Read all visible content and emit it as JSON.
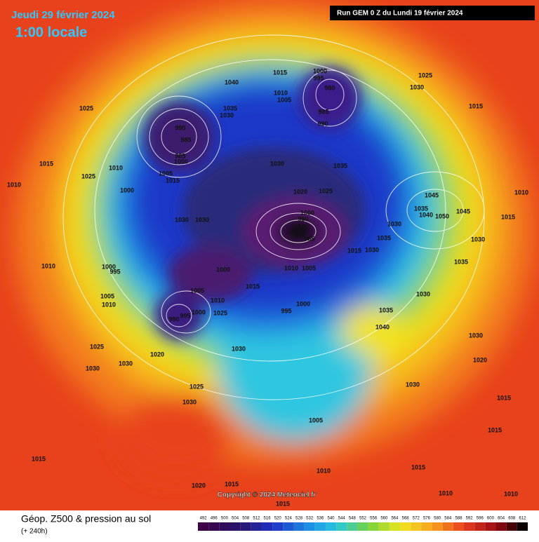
{
  "header": {
    "date": "Jeudi 29 février 2024",
    "time": "1:00 locale",
    "run": "Run GEM 0 Z du Lundi 19 février 2024"
  },
  "map": {
    "copyright": "Copyright © 2024 Meteociel.fr",
    "pressure_labels": [
      "1040",
      "1015",
      "1000",
      "995",
      "1025",
      "1030",
      "1015",
      "1010",
      "1005",
      "1035",
      "1030",
      "980",
      "985",
      "990",
      "1025",
      "990",
      "985",
      "985",
      "1000",
      "1005",
      "1015",
      "1010",
      "1015",
      "1025",
      "1010",
      "1000",
      "1030",
      "1035",
      "1020",
      "1025",
      "1045",
      "1010",
      "1035",
      "1040",
      "1050",
      "1045",
      "1015",
      "1030",
      "1030",
      "1000",
      "990",
      "980",
      "970",
      "985",
      "1030",
      "1035",
      "1030",
      "1015",
      "1030",
      "1035",
      "1010",
      "1000",
      "995",
      "1000",
      "1010",
      "1005",
      "1015",
      "1005",
      "1030",
      "1005",
      "1010",
      "1010",
      "1000",
      "1025",
      "995",
      "990",
      "995",
      "1000",
      "1035",
      "1040",
      "1030",
      "1025",
      "1030",
      "1020",
      "1020",
      "1030",
      "1030",
      "1030",
      "1025",
      "1030",
      "1015",
      "1005",
      "1015",
      "1015",
      "1010",
      "1015",
      "1020",
      "1015",
      "1010",
      "1010",
      "1015"
    ]
  },
  "footer": {
    "title": "Géop. Z500 & pression au sol",
    "subtitle": "(+ 240h)",
    "scale": [
      492,
      496,
      500,
      504,
      508,
      512,
      516,
      520,
      524,
      528,
      532,
      536,
      540,
      544,
      548,
      552,
      556,
      560,
      564,
      568,
      572,
      576,
      580,
      584,
      588,
      592,
      596,
      600,
      604,
      608,
      612
    ]
  }
}
